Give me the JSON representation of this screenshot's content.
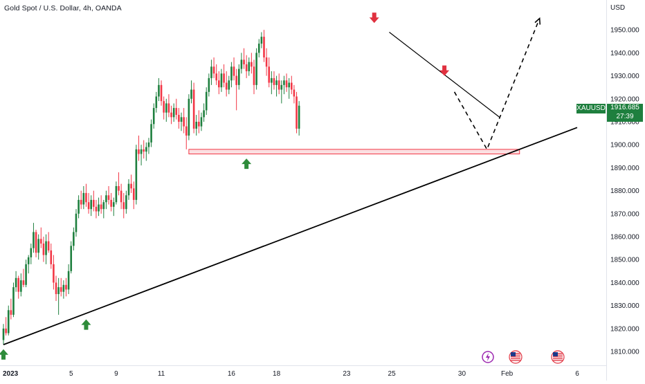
{
  "header": {
    "title": "Gold Spot / U.S. Dollar, 4h, OANDA",
    "currency": "USD"
  },
  "price_tag": {
    "symbol": "XAUUSD",
    "price": "1916.685",
    "countdown": "27:39"
  },
  "colors": {
    "bullish": "#1e7f3e",
    "bearish": "#f23645",
    "zone_fill": "#f9c9cd",
    "zone_border": "#f23645",
    "trendline": "#000000",
    "arrow_up": "#2e8b3a",
    "arrow_down": "#e0313f"
  },
  "icons": [
    "lightning-event-icon",
    "us-flag-icon",
    "us-flag-icon"
  ],
  "chart_data": {
    "type": "candlestick",
    "title": "Gold Spot / U.S. Dollar, 4h, OANDA",
    "ylabel": "USD",
    "ylim": [
      1804,
      1963
    ],
    "y_ticks": [
      1810,
      1820,
      1830,
      1840,
      1850,
      1860,
      1870,
      1880,
      1890,
      1900,
      1910,
      1920,
      1930,
      1940,
      1950
    ],
    "x_ticks": [
      {
        "label": "2023",
        "bar": 3
      },
      {
        "label": "5",
        "bar": 27
      },
      {
        "label": "9",
        "bar": 45
      },
      {
        "label": "11",
        "bar": 63
      },
      {
        "label": "16",
        "bar": 91
      },
      {
        "label": "18",
        "bar": 109
      },
      {
        "label": "23",
        "bar": 137
      },
      {
        "label": "25",
        "bar": 155
      },
      {
        "label": "30",
        "bar": 183
      },
      {
        "label": "Feb",
        "bar": 201
      },
      {
        "label": "6",
        "bar": 229
      }
    ],
    "grid": false,
    "candles": [
      [
        1815,
        1822,
        1813,
        1820
      ],
      [
        1820,
        1825,
        1817,
        1818
      ],
      [
        1818,
        1830,
        1817,
        1828
      ],
      [
        1828,
        1833,
        1824,
        1826
      ],
      [
        1826,
        1840,
        1825,
        1838
      ],
      [
        1838,
        1845,
        1836,
        1842
      ],
      [
        1842,
        1843,
        1833,
        1836
      ],
      [
        1836,
        1844,
        1834,
        1841
      ],
      [
        1841,
        1846,
        1838,
        1839
      ],
      [
        1839,
        1850,
        1838,
        1848
      ],
      [
        1848,
        1852,
        1844,
        1851
      ],
      [
        1851,
        1857,
        1848,
        1855
      ],
      [
        1855,
        1866,
        1853,
        1862
      ],
      [
        1862,
        1863,
        1851,
        1853
      ],
      [
        1853,
        1861,
        1850,
        1859
      ],
      [
        1859,
        1864,
        1855,
        1857
      ],
      [
        1857,
        1860,
        1849,
        1852
      ],
      [
        1852,
        1861,
        1848,
        1858
      ],
      [
        1858,
        1862,
        1853,
        1854
      ],
      [
        1854,
        1857,
        1846,
        1848
      ],
      [
        1848,
        1852,
        1837,
        1840
      ],
      [
        1840,
        1843,
        1832,
        1835
      ],
      [
        1835,
        1842,
        1826,
        1838
      ],
      [
        1838,
        1842,
        1834,
        1836
      ],
      [
        1836,
        1841,
        1833,
        1839
      ],
      [
        1839,
        1842,
        1834,
        1837
      ],
      [
        1837,
        1848,
        1835,
        1845
      ],
      [
        1845,
        1858,
        1844,
        1856
      ],
      [
        1856,
        1864,
        1854,
        1862
      ],
      [
        1862,
        1872,
        1860,
        1870
      ],
      [
        1870,
        1878,
        1868,
        1876
      ],
      [
        1876,
        1880,
        1872,
        1874
      ],
      [
        1874,
        1882,
        1872,
        1879
      ],
      [
        1879,
        1883,
        1873,
        1875
      ],
      [
        1875,
        1879,
        1870,
        1872
      ],
      [
        1872,
        1878,
        1869,
        1876
      ],
      [
        1876,
        1880,
        1871,
        1873
      ],
      [
        1873,
        1876,
        1868,
        1871
      ],
      [
        1871,
        1877,
        1869,
        1874
      ],
      [
        1874,
        1878,
        1870,
        1872
      ],
      [
        1872,
        1876,
        1868,
        1875
      ],
      [
        1875,
        1880,
        1872,
        1878
      ],
      [
        1878,
        1882,
        1874,
        1876
      ],
      [
        1876,
        1879,
        1871,
        1873
      ],
      [
        1873,
        1877,
        1869,
        1875
      ],
      [
        1875,
        1884,
        1874,
        1882
      ],
      [
        1882,
        1888,
        1878,
        1880
      ],
      [
        1880,
        1883,
        1872,
        1875
      ],
      [
        1875,
        1879,
        1868,
        1872
      ],
      [
        1872,
        1880,
        1870,
        1878
      ],
      [
        1878,
        1885,
        1876,
        1883
      ],
      [
        1883,
        1887,
        1879,
        1881
      ],
      [
        1881,
        1884,
        1872,
        1876
      ],
      [
        1876,
        1900,
        1874,
        1898
      ],
      [
        1898,
        1904,
        1893,
        1896
      ],
      [
        1896,
        1900,
        1891,
        1898
      ],
      [
        1898,
        1902,
        1894,
        1897
      ],
      [
        1897,
        1901,
        1893,
        1899
      ],
      [
        1899,
        1903,
        1896,
        1901
      ],
      [
        1901,
        1911,
        1899,
        1909
      ],
      [
        1909,
        1918,
        1907,
        1916
      ],
      [
        1916,
        1923,
        1914,
        1921
      ],
      [
        1921,
        1929,
        1919,
        1926
      ],
      [
        1926,
        1928,
        1917,
        1919
      ],
      [
        1919,
        1921,
        1911,
        1914
      ],
      [
        1914,
        1920,
        1910,
        1918
      ],
      [
        1918,
        1922,
        1912,
        1914
      ],
      [
        1914,
        1917,
        1909,
        1912
      ],
      [
        1912,
        1918,
        1910,
        1916
      ],
      [
        1916,
        1920,
        1911,
        1913
      ],
      [
        1913,
        1916,
        1907,
        1910
      ],
      [
        1910,
        1914,
        1906,
        1912
      ],
      [
        1912,
        1916,
        1905,
        1908
      ],
      [
        1908,
        1912,
        1898,
        1904
      ],
      [
        1904,
        1922,
        1902,
        1920
      ],
      [
        1920,
        1928,
        1918,
        1924
      ],
      [
        1924,
        1927,
        1905,
        1907
      ],
      [
        1907,
        1913,
        1904,
        1910
      ],
      [
        1910,
        1915,
        1905,
        1908
      ],
      [
        1908,
        1914,
        1906,
        1912
      ],
      [
        1912,
        1918,
        1910,
        1915
      ],
      [
        1915,
        1925,
        1913,
        1923
      ],
      [
        1923,
        1931,
        1921,
        1929
      ],
      [
        1929,
        1937,
        1926,
        1934
      ],
      [
        1934,
        1938,
        1929,
        1931
      ],
      [
        1931,
        1935,
        1926,
        1928
      ],
      [
        1928,
        1932,
        1922,
        1925
      ],
      [
        1925,
        1933,
        1923,
        1931
      ],
      [
        1931,
        1935,
        1925,
        1927
      ],
      [
        1927,
        1932,
        1921,
        1924
      ],
      [
        1924,
        1930,
        1922,
        1928
      ],
      [
        1928,
        1936,
        1925,
        1934
      ],
      [
        1934,
        1938,
        1928,
        1930
      ],
      [
        1930,
        1933,
        1915,
        1926
      ],
      [
        1926,
        1935,
        1924,
        1933
      ],
      [
        1933,
        1940,
        1931,
        1937
      ],
      [
        1937,
        1942,
        1933,
        1935
      ],
      [
        1935,
        1939,
        1929,
        1932
      ],
      [
        1932,
        1938,
        1930,
        1936
      ],
      [
        1936,
        1940,
        1931,
        1934
      ],
      [
        1934,
        1937,
        1922,
        1926
      ],
      [
        1926,
        1942,
        1924,
        1940
      ],
      [
        1940,
        1946,
        1938,
        1944
      ],
      [
        1944,
        1949,
        1942,
        1947
      ],
      [
        1947,
        1950,
        1936,
        1938
      ],
      [
        1938,
        1942,
        1930,
        1934
      ],
      [
        1934,
        1938,
        1925,
        1927
      ],
      [
        1927,
        1932,
        1922,
        1929
      ],
      [
        1929,
        1932,
        1924,
        1926
      ],
      [
        1926,
        1930,
        1921,
        1928
      ],
      [
        1928,
        1931,
        1922,
        1924
      ],
      [
        1924,
        1928,
        1918,
        1926
      ],
      [
        1926,
        1930,
        1922,
        1928
      ],
      [
        1928,
        1931,
        1923,
        1925
      ],
      [
        1925,
        1929,
        1920,
        1927
      ],
      [
        1927,
        1930,
        1922,
        1924
      ],
      [
        1924,
        1926,
        1918,
        1921
      ],
      [
        1921,
        1923,
        1905,
        1907
      ],
      [
        1907,
        1919,
        1904,
        1917
      ]
    ],
    "support_zone": {
      "top": 1898,
      "bottom": 1896,
      "from_bar": 74,
      "to_bar": 206
    },
    "trendlines": [
      {
        "name": "rising-support",
        "from": [
          0,
          1813
        ],
        "to": [
          229,
          1907.5
        ]
      },
      {
        "name": "falling-resistance",
        "from": [
          154,
          1949
        ],
        "to": [
          198,
          1912
        ]
      }
    ],
    "projection": [
      [
        180,
        1923
      ],
      [
        193,
        1898
      ],
      [
        214,
        1955
      ]
    ],
    "markers": [
      {
        "type": "up",
        "bar": 0,
        "price": 1811
      },
      {
        "type": "up",
        "bar": 33,
        "price": 1824
      },
      {
        "type": "up",
        "bar": 97,
        "price": 1894
      },
      {
        "type": "down",
        "bar": 148,
        "price": 1953
      },
      {
        "type": "down",
        "bar": 176,
        "price": 1930
      }
    ]
  }
}
